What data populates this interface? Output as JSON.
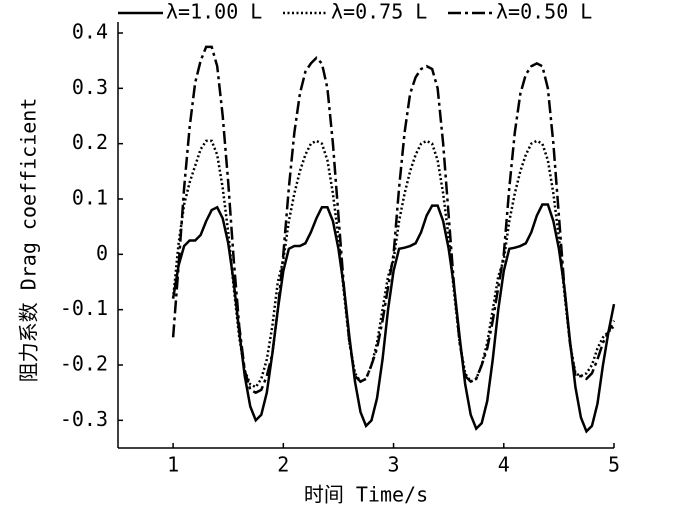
{
  "chart_data": {
    "type": "line",
    "xlabel": "时间 Time/s",
    "ylabel": "阻力系数 Drag coefficient",
    "xlim": [
      0.5,
      5
    ],
    "xticks": [
      1,
      2,
      3,
      4,
      5
    ],
    "ylim": [
      -0.35,
      0.4
    ],
    "yticks": [
      0.4,
      0.3,
      0.2,
      0.1,
      0,
      -0.1,
      -0.2,
      -0.3
    ],
    "legend": "top",
    "x": [
      1,
      1.05,
      1.1,
      1.15,
      1.2,
      1.25,
      1.3,
      1.35,
      1.4,
      1.45,
      1.5,
      1.55,
      1.6,
      1.65,
      1.7,
      1.75,
      1.8,
      1.85,
      1.9,
      1.95,
      2,
      2.05,
      2.1,
      2.15,
      2.2,
      2.25,
      2.3,
      2.35,
      2.4,
      2.45,
      2.5,
      2.55,
      2.6,
      2.65,
      2.7,
      2.75,
      2.8,
      2.85,
      2.9,
      2.95,
      3,
      3.05,
      3.1,
      3.15,
      3.2,
      3.25,
      3.3,
      3.35,
      3.4,
      3.45,
      3.5,
      3.55,
      3.6,
      3.65,
      3.7,
      3.75,
      3.8,
      3.85,
      3.9,
      3.95,
      4,
      4.05,
      4.1,
      4.15,
      4.2,
      4.25,
      4.3,
      4.35,
      4.4,
      4.45,
      4.5,
      4.55,
      4.6,
      4.65,
      4.7,
      4.75,
      4.8,
      4.85,
      4.9,
      4.95,
      5
    ],
    "series": [
      {
        "name": "λ=1.00 L",
        "color": "#000000",
        "linestyle": "solid",
        "values": [
          -0.08,
          -0.02,
          0.015,
          0.025,
          0.025,
          0.035,
          0.06,
          0.08,
          0.085,
          0.065,
          0.02,
          -0.05,
          -0.14,
          -0.22,
          -0.275,
          -0.3,
          -0.29,
          -0.25,
          -0.18,
          -0.1,
          -0.03,
          0.01,
          0.015,
          0.015,
          0.02,
          0.04,
          0.065,
          0.085,
          0.085,
          0.06,
          0.01,
          -0.06,
          -0.15,
          -0.23,
          -0.285,
          -0.31,
          -0.3,
          -0.26,
          -0.19,
          -0.1,
          -0.03,
          0.01,
          0.012,
          0.015,
          0.02,
          0.04,
          0.07,
          0.088,
          0.088,
          0.06,
          0.01,
          -0.06,
          -0.15,
          -0.235,
          -0.29,
          -0.315,
          -0.305,
          -0.265,
          -0.19,
          -0.1,
          -0.03,
          0.01,
          0.012,
          0.015,
          0.02,
          0.04,
          0.07,
          0.09,
          0.09,
          0.06,
          0.01,
          -0.06,
          -0.155,
          -0.24,
          -0.295,
          -0.32,
          -0.31,
          -0.27,
          -0.2,
          -0.14,
          -0.09
        ]
      },
      {
        "name": "λ=0.75 L",
        "color": "#000000",
        "linestyle": "dotted",
        "values": [
          -0.08,
          0.02,
          0.09,
          0.13,
          0.16,
          0.19,
          0.205,
          0.205,
          0.18,
          0.12,
          0.04,
          -0.06,
          -0.15,
          -0.21,
          -0.235,
          -0.24,
          -0.225,
          -0.19,
          -0.13,
          -0.05,
          -0.01,
          0.06,
          0.11,
          0.15,
          0.18,
          0.2,
          0.205,
          0.2,
          0.17,
          0.11,
          0.03,
          -0.07,
          -0.16,
          -0.215,
          -0.23,
          -0.225,
          -0.2,
          -0.16,
          -0.1,
          -0.04,
          -0.01,
          0.06,
          0.11,
          0.15,
          0.18,
          0.2,
          0.205,
          0.2,
          0.17,
          0.11,
          0.03,
          -0.07,
          -0.16,
          -0.215,
          -0.23,
          -0.225,
          -0.2,
          -0.16,
          -0.1,
          -0.04,
          -0.01,
          0.06,
          0.11,
          0.15,
          0.18,
          0.2,
          0.205,
          0.2,
          0.17,
          0.11,
          0.03,
          -0.07,
          -0.16,
          -0.215,
          -0.22,
          -0.215,
          -0.2,
          -0.17,
          -0.15,
          -0.14,
          -0.13
        ]
      },
      {
        "name": "λ=0.50 L",
        "color": "#000000",
        "linestyle": "dashdot",
        "values": [
          -0.15,
          -0.02,
          0.12,
          0.23,
          0.31,
          0.35,
          0.375,
          0.375,
          0.34,
          0.25,
          0.13,
          -0.01,
          -0.13,
          -0.21,
          -0.245,
          -0.25,
          -0.245,
          -0.22,
          -0.18,
          -0.1,
          0,
          0.12,
          0.22,
          0.29,
          0.33,
          0.345,
          0.355,
          0.345,
          0.3,
          0.2,
          0.07,
          -0.06,
          -0.16,
          -0.22,
          -0.23,
          -0.225,
          -0.2,
          -0.17,
          -0.12,
          -0.06,
          0,
          0.12,
          0.22,
          0.29,
          0.32,
          0.335,
          0.34,
          0.335,
          0.3,
          0.2,
          0.07,
          -0.06,
          -0.16,
          -0.22,
          -0.23,
          -0.225,
          -0.2,
          -0.17,
          -0.12,
          -0.06,
          0,
          0.12,
          0.22,
          0.29,
          0.325,
          0.34,
          0.345,
          0.34,
          0.3,
          0.2,
          0.07,
          -0.06,
          -0.16,
          -0.22,
          -0.22,
          -0.225,
          -0.215,
          -0.19,
          -0.16,
          -0.14,
          -0.12
        ]
      }
    ]
  }
}
